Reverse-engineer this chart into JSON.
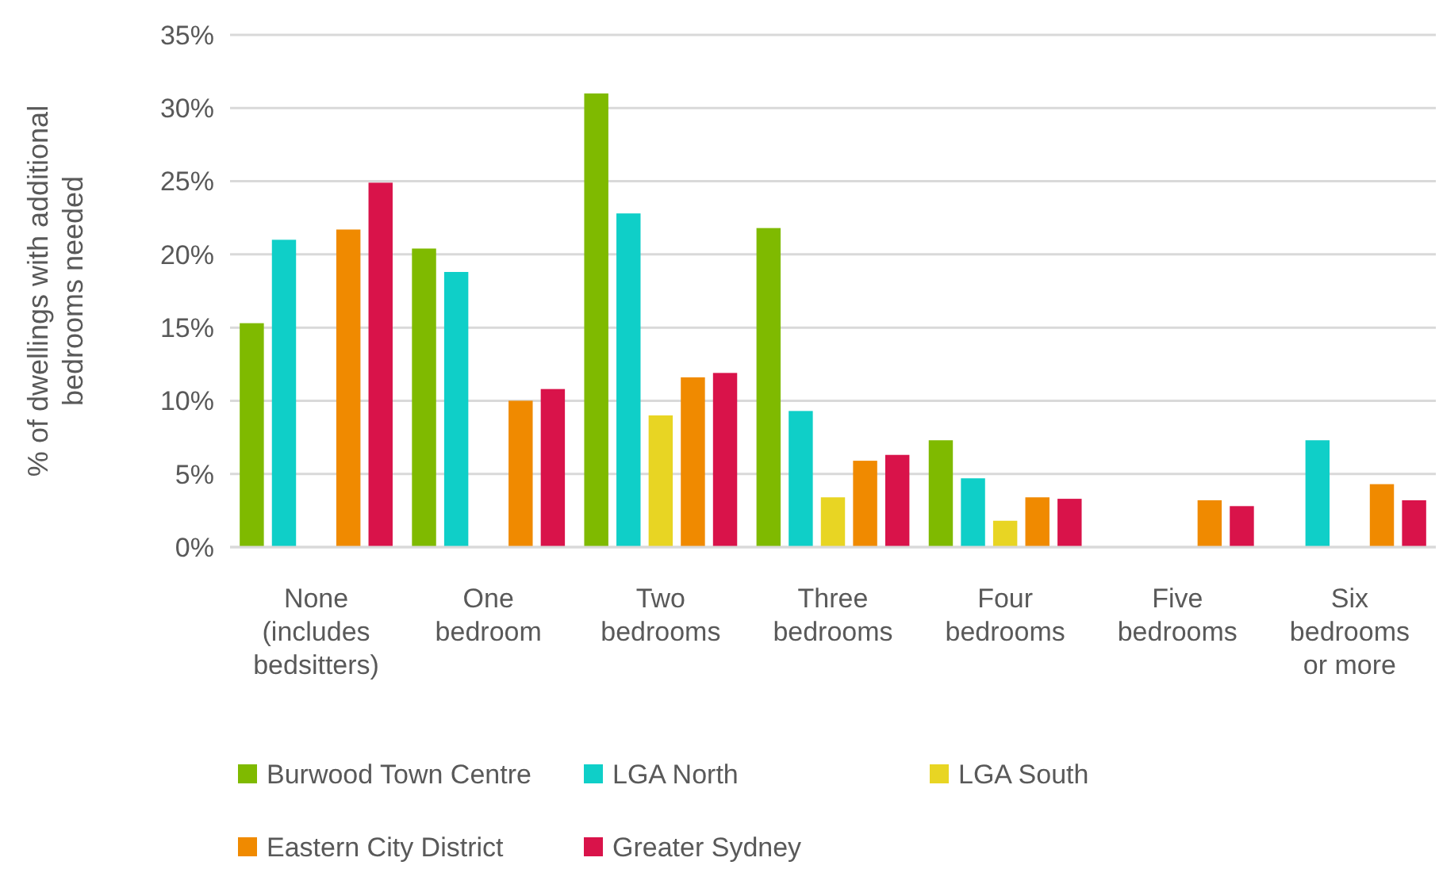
{
  "chart_data": {
    "type": "bar",
    "ylabel": "% of dwellings with additional bedrooms needed",
    "categories": [
      "None (includes bedsitters)",
      "One bedroom",
      "Two bedrooms",
      "Three bedrooms",
      "Four bedrooms",
      "Five bedrooms",
      "Six bedrooms or more"
    ],
    "series": [
      {
        "name": "Burwood Town Centre",
        "color": "#7fba00",
        "values": [
          15.3,
          20.4,
          31.0,
          21.8,
          7.3,
          null,
          null
        ]
      },
      {
        "name": "LGA North",
        "color": "#0fcfc8",
        "values": [
          21.0,
          18.8,
          22.8,
          9.3,
          4.7,
          null,
          7.3
        ]
      },
      {
        "name": "LGA South",
        "color": "#e8d523",
        "values": [
          null,
          null,
          9.0,
          3.4,
          1.8,
          null,
          null
        ]
      },
      {
        "name": "Eastern City District",
        "color": "#f08a00",
        "values": [
          21.7,
          10.0,
          11.6,
          5.9,
          3.4,
          3.2,
          4.3
        ]
      },
      {
        "name": "Greater Sydney",
        "color": "#d9134a",
        "values": [
          24.9,
          10.8,
          11.9,
          6.3,
          3.3,
          2.8,
          3.2
        ]
      }
    ],
    "ylim": [
      0,
      35
    ],
    "yticks": [
      {
        "value": 0,
        "label": "0%"
      },
      {
        "value": 5,
        "label": "5%"
      },
      {
        "value": 10,
        "label": "10%"
      },
      {
        "value": 15,
        "label": "15%"
      },
      {
        "value": 20,
        "label": "20%"
      },
      {
        "value": 25,
        "label": "25%"
      },
      {
        "value": 30,
        "label": "30%"
      },
      {
        "value": 35,
        "label": "35%"
      }
    ],
    "grid": "y",
    "legend": "bottom"
  }
}
